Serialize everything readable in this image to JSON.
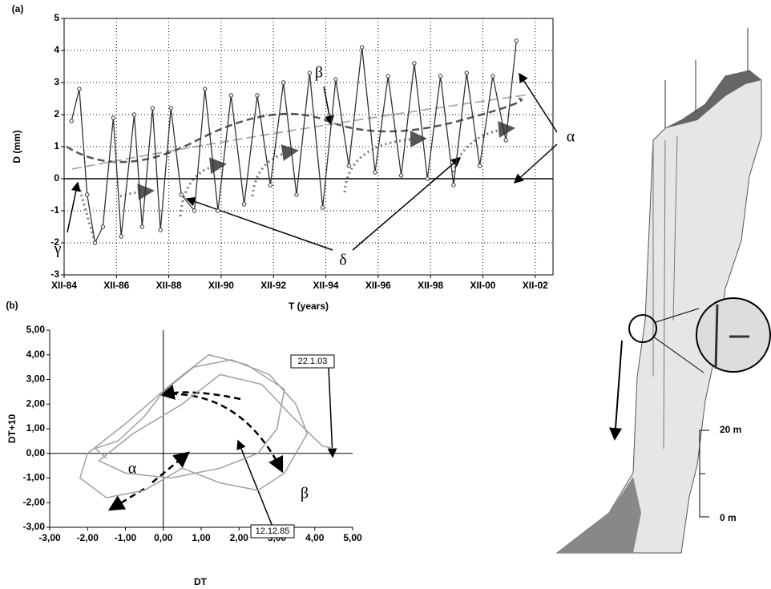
{
  "chart_data": [
    {
      "type": "line",
      "panel_label": "(a)",
      "xlabel": "T (years)",
      "ylabel": "D (mm)",
      "x": [
        1985.2,
        1985.5,
        1985.8,
        1986.1,
        1986.4,
        1986.8,
        1987.1,
        1987.6,
        1987.9,
        1988.3,
        1988.6,
        1989.0,
        1989.4,
        1989.9,
        1990.3,
        1990.8,
        1991.3,
        1991.8,
        1992.3,
        1992.8,
        1993.3,
        1993.8,
        1994.3,
        1994.8,
        1995.3,
        1995.8,
        1996.3,
        1996.8,
        1997.3,
        1997.8,
        1998.3,
        1998.8,
        1999.3,
        1999.8,
        2000.3,
        2000.8,
        2001.3,
        2001.8,
        2002.2
      ],
      "series": [
        {
          "color": "#333333",
          "values": [
            1.8,
            2.8,
            -0.5,
            -2.0,
            -1.5,
            1.9,
            -1.8,
            2.0,
            -1.5,
            2.2,
            -1.6,
            2.2,
            -0.5,
            -1.0,
            2.8,
            -1.0,
            2.6,
            -0.8,
            2.6,
            -0.2,
            3.0,
            -0.5,
            3.3,
            -0.9,
            3.1,
            0.4,
            4.1,
            0.2,
            3.2,
            0.1,
            3.6,
            0.0,
            3.2,
            -0.2,
            3.3,
            0.4,
            3.2,
            1.2,
            4.3
          ]
        }
      ],
      "xlim": [
        1984.92,
        2003.6
      ],
      "xticks": [
        {
          "value": 1984.92,
          "label": "XII-84"
        },
        {
          "value": 1986.92,
          "label": "XII-86"
        },
        {
          "value": 1988.92,
          "label": "XII-88"
        },
        {
          "value": 1990.92,
          "label": "XII-90"
        },
        {
          "value": 1992.92,
          "label": "XII-92"
        },
        {
          "value": 1994.92,
          "label": "XII-94"
        },
        {
          "value": 1996.92,
          "label": "XII-96"
        },
        {
          "value": 1998.92,
          "label": "XII-98"
        },
        {
          "value": 2000.92,
          "label": "XII-00"
        },
        {
          "value": 2002.92,
          "label": "XII-02"
        }
      ],
      "ylim": [
        -3,
        5
      ],
      "yticks": [
        -3,
        -2,
        -1,
        0,
        1,
        2,
        3,
        4,
        5
      ],
      "grid": true,
      "annotations": [
        "β",
        "α",
        "γ",
        "δ"
      ]
    },
    {
      "type": "line",
      "panel_label": "(b)",
      "xlabel": "DT",
      "ylabel": "DT+10",
      "x": [
        -1.5,
        -1.8,
        -1.2,
        -0.5,
        0,
        0.8,
        1.8,
        2.8,
        3.5,
        3.8,
        3.2,
        2.5,
        1.5,
        0.5,
        -0.5,
        -1.5,
        -2.2,
        -2.0,
        -1.0,
        0.2,
        1.2,
        2.2,
        3.2,
        3.0,
        2.5,
        1.5,
        0.2,
        -1.0,
        -1.7,
        -0.8,
        0.5,
        1.5,
        2.6,
        3.4,
        4.2,
        4.5
      ],
      "series": [
        {
          "color": "#a0a0a0",
          "values": [
            -0.2,
            0.2,
            0.5,
            1.5,
            2.5,
            3.5,
            3.8,
            3.2,
            2.0,
            0.8,
            -0.8,
            -1.5,
            -1.2,
            -0.6,
            -1.5,
            -1.8,
            -1.0,
            0.0,
            1.2,
            2.8,
            4.0,
            3.6,
            2.6,
            1.0,
            0.0,
            -0.6,
            -1.0,
            -0.8,
            -0.3,
            0.8,
            2.0,
            3.2,
            2.8,
            1.5,
            0.3,
            0.2
          ]
        }
      ],
      "xlim": [
        -3,
        5
      ],
      "xticks": [
        {
          "value": -3,
          "label": "-3,00"
        },
        {
          "value": -2,
          "label": "-2,00"
        },
        {
          "value": -1,
          "label": "-1,00"
        },
        {
          "value": 0,
          "label": "0,00"
        },
        {
          "value": 1,
          "label": "1,00"
        },
        {
          "value": 2,
          "label": "2,00"
        },
        {
          "value": 3,
          "label": "3,00"
        },
        {
          "value": 4,
          "label": "4,00"
        },
        {
          "value": 5,
          "label": "5,00"
        }
      ],
      "ylim": [
        -3,
        5
      ],
      "yticks": [
        {
          "value": -3,
          "label": "-3,00"
        },
        {
          "value": -2,
          "label": "-2,00"
        },
        {
          "value": -1,
          "label": "-1,00"
        },
        {
          "value": 0,
          "label": "0,00"
        },
        {
          "value": 1,
          "label": "1,00"
        },
        {
          "value": 2,
          "label": "2,00"
        },
        {
          "value": 3,
          "label": "3,00"
        },
        {
          "value": 4,
          "label": "4,00"
        },
        {
          "value": 5,
          "label": "5,00"
        }
      ],
      "grid": false,
      "annotations": [
        "22.1.03",
        "12.12.85",
        "α",
        "β"
      ]
    }
  ],
  "drawing": {
    "scale_labels": [
      "20 m",
      "0 m"
    ]
  }
}
